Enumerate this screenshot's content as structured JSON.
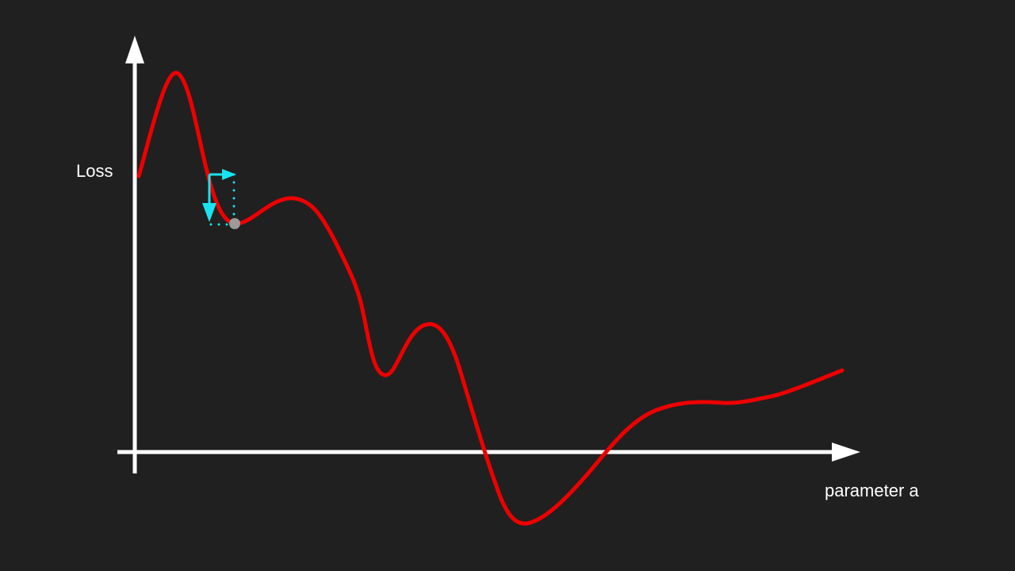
{
  "labels": {
    "y_axis": "Loss",
    "x_axis": "parameter a"
  },
  "colors": {
    "background": "#202020",
    "axes": "#ffffff",
    "loss_curve": "#ee0000",
    "gradient_step": "#19e3f0",
    "current_point": "#9a9a9a"
  },
  "icons": {
    "current_point": "circle-marker",
    "gradient_step": "right-angle-arrow"
  }
}
